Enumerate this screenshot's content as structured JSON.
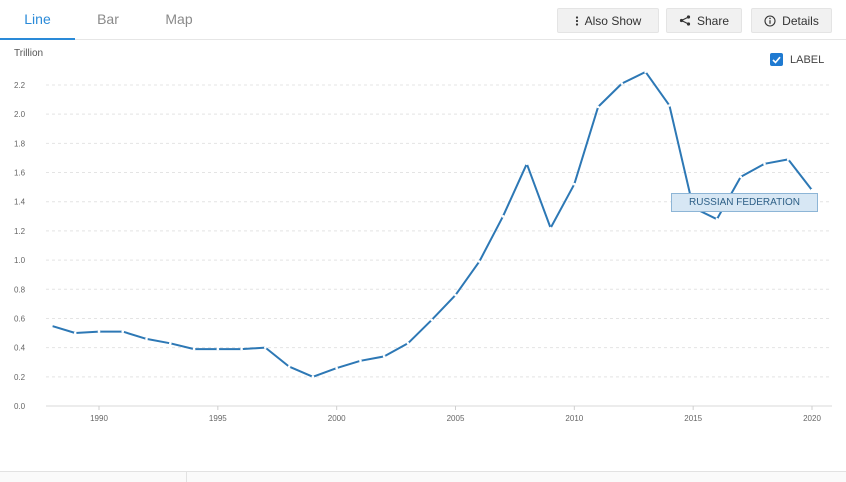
{
  "tabs": [
    {
      "label": "Line",
      "active": true
    },
    {
      "label": "Bar",
      "active": false
    },
    {
      "label": "Map",
      "active": false
    }
  ],
  "toolbar": {
    "also_show_label": "Also Show",
    "share_label": "Share",
    "details_label": "Details"
  },
  "legend": {
    "checkbox_label": "LABEL",
    "checked": true
  },
  "chart_data": {
    "type": "line",
    "title": "",
    "ylabel": "Trillion",
    "xlabel": "",
    "ylim": [
      0,
      2.3
    ],
    "xlim": [
      1988,
      2021
    ],
    "yticks": [
      "0.0",
      "0.2",
      "0.4",
      "0.6",
      "0.8",
      "1.0",
      "1.2",
      "1.4",
      "1.6",
      "1.8",
      "2.0",
      "2.2"
    ],
    "xticks": [
      "1990",
      "1995",
      "2000",
      "2005",
      "2010",
      "2015",
      "2020"
    ],
    "grid": true,
    "series": [
      {
        "name": "RUSSIAN FEDERATION",
        "color": "#2d78b5",
        "x": [
          1988,
          1989,
          1990,
          1991,
          1992,
          1993,
          1994,
          1995,
          1996,
          1997,
          1998,
          1999,
          2000,
          2001,
          2002,
          2003,
          2004,
          2005,
          2006,
          2007,
          2008,
          2009,
          2010,
          2011,
          2012,
          2013,
          2014,
          2015,
          2016,
          2017,
          2018,
          2019,
          2020
        ],
        "y": [
          0.55,
          0.5,
          0.51,
          0.51,
          0.46,
          0.43,
          0.39,
          0.39,
          0.39,
          0.4,
          0.27,
          0.2,
          0.26,
          0.31,
          0.34,
          0.43,
          0.59,
          0.76,
          0.99,
          1.3,
          1.66,
          1.22,
          1.52,
          2.05,
          2.21,
          2.29,
          2.06,
          1.36,
          1.28,
          1.57,
          1.66,
          1.69,
          1.48
        ]
      }
    ]
  }
}
